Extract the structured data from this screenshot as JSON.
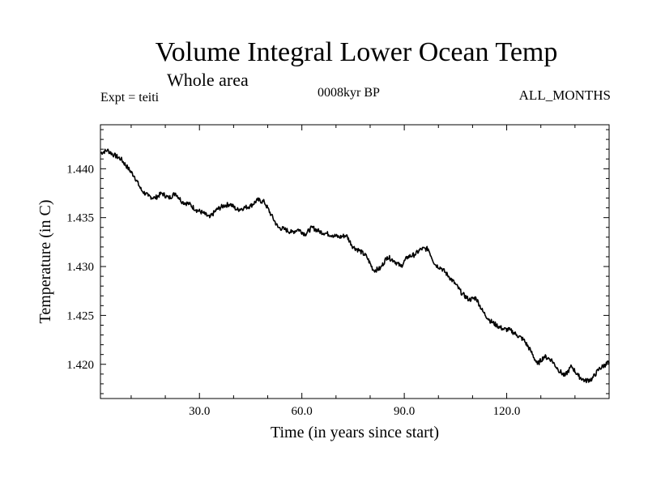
{
  "header": {
    "title": "Volume Integral Lower Ocean Temp",
    "subtitle": "Whole area",
    "experiment": "Expt = teiti",
    "period": "0008kyr BP",
    "months": "ALL_MONTHS"
  },
  "chart_data": {
    "type": "line",
    "title": "Volume Integral Lower Ocean Temp",
    "xlabel": "Time (in years since start)",
    "ylabel": "Temperature (in C)",
    "xlim": [
      1,
      150
    ],
    "ylim": [
      1.4165,
      1.4445
    ],
    "xticks": [
      30,
      60,
      90,
      120
    ],
    "xtick_labels": [
      "30.0",
      "60.0",
      "90.0",
      "120.0"
    ],
    "yticks": [
      1.42,
      1.425,
      1.43,
      1.435,
      1.44
    ],
    "ytick_labels": [
      "1.420",
      "1.425",
      "1.430",
      "1.435",
      "1.440"
    ],
    "grid": false,
    "series": [
      {
        "name": "Volume integral lower ocean temperature",
        "x": [
          1,
          3,
          5,
          7,
          9,
          11,
          13,
          15,
          17,
          19,
          21,
          23,
          25,
          27,
          29,
          31,
          33,
          35,
          37,
          39,
          41,
          43,
          45,
          47,
          49,
          51,
          53,
          55,
          57,
          59,
          61,
          63,
          65,
          67,
          69,
          71,
          73,
          75,
          77,
          79,
          81,
          83,
          85,
          87,
          89,
          91,
          93,
          95,
          97,
          99,
          101,
          103,
          105,
          107,
          109,
          111,
          113,
          115,
          117,
          119,
          121,
          123,
          125,
          127,
          129,
          131,
          133,
          135,
          137,
          139,
          141,
          143,
          145,
          147,
          149,
          150
        ],
        "y": [
          1.4416,
          1.4419,
          1.4414,
          1.441,
          1.4401,
          1.4392,
          1.4378,
          1.4372,
          1.437,
          1.4375,
          1.437,
          1.4375,
          1.4366,
          1.4364,
          1.4358,
          1.4355,
          1.435,
          1.4358,
          1.4362,
          1.4364,
          1.4358,
          1.436,
          1.4362,
          1.4368,
          1.4366,
          1.4353,
          1.434,
          1.4338,
          1.4335,
          1.4338,
          1.4333,
          1.434,
          1.4336,
          1.4334,
          1.4332,
          1.433,
          1.4332,
          1.432,
          1.4316,
          1.431,
          1.4296,
          1.4298,
          1.431,
          1.4306,
          1.43,
          1.431,
          1.4312,
          1.4318,
          1.4318,
          1.4302,
          1.4298,
          1.429,
          1.4282,
          1.4272,
          1.4266,
          1.4268,
          1.4254,
          1.4245,
          1.424,
          1.4236,
          1.4235,
          1.423,
          1.4225,
          1.4214,
          1.42,
          1.4208,
          1.4205,
          1.4195,
          1.4188,
          1.4198,
          1.4188,
          1.4183,
          1.4185,
          1.4195,
          1.42,
          1.4202
        ]
      }
    ]
  }
}
